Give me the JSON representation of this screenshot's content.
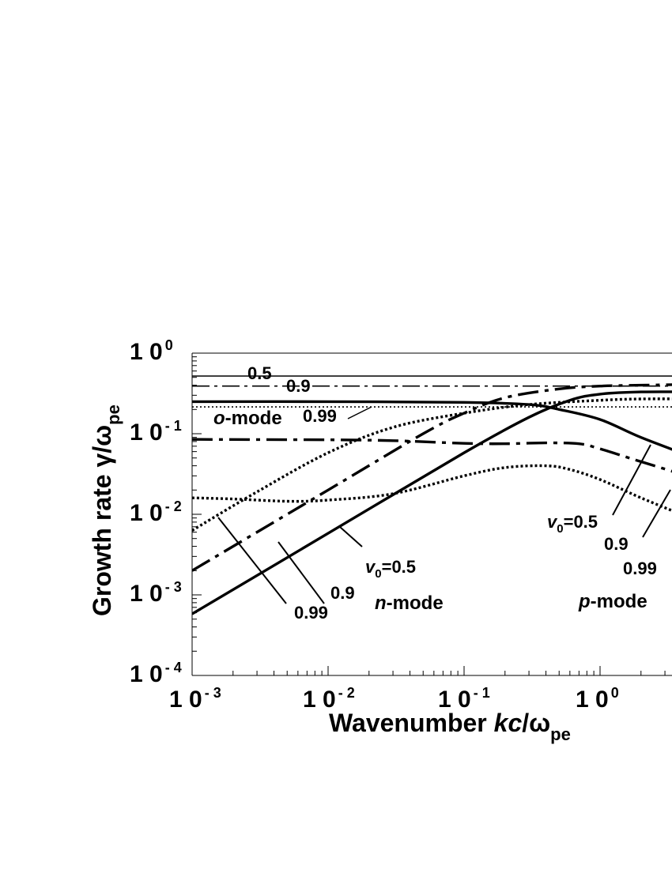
{
  "chart_data": {
    "type": "line",
    "x_scale": "log",
    "y_scale": "log",
    "xlim": [
      0.001,
      5
    ],
    "ylim": [
      0.0001,
      1
    ],
    "xlabel": {
      "text": "Wavenumber ",
      "italic": "kc",
      "rest": "/ω",
      "sub": "pe"
    },
    "ylabel": {
      "text": "Growth rate γ/ω",
      "sub": "pe"
    },
    "x_ticks": [
      {
        "value": 0.001,
        "base": "1 0",
        "exp": "- 3"
      },
      {
        "value": 0.01,
        "base": "1 0",
        "exp": "- 2"
      },
      {
        "value": 0.1,
        "base": "1 0",
        "exp": "- 1"
      },
      {
        "value": 1,
        "base": "1 0",
        "exp": "0"
      }
    ],
    "y_ticks": [
      {
        "value": 1,
        "base": "1 0",
        "exp": "0"
      },
      {
        "value": 0.1,
        "base": "1 0",
        "exp": "- 1"
      },
      {
        "value": 0.01,
        "base": "1 0",
        "exp": "- 2"
      },
      {
        "value": 0.001,
        "base": "1 0",
        "exp": "- 3"
      },
      {
        "value": 0.0001,
        "base": "1 0",
        "exp": "- 4"
      }
    ],
    "series": [
      {
        "mode": "o",
        "v0": 0.5,
        "style": "thin-solid",
        "x": [
          0.001,
          5
        ],
        "y": [
          0.52,
          0.52
        ]
      },
      {
        "mode": "o",
        "v0": 0.9,
        "style": "thin-dashdot",
        "x": [
          0.001,
          5
        ],
        "y": [
          0.39,
          0.39
        ]
      },
      {
        "mode": "o",
        "v0": 0.99,
        "style": "thin-dotted",
        "x": [
          0.001,
          5
        ],
        "y": [
          0.215,
          0.215
        ]
      },
      {
        "mode": "n",
        "v0": 0.5,
        "style": "thick-solid",
        "x": [
          0.001,
          0.01,
          0.1,
          0.3,
          0.6,
          1,
          2,
          5
        ],
        "y": [
          0.00058,
          0.0058,
          0.058,
          0.16,
          0.26,
          0.31,
          0.33,
          0.33
        ]
      },
      {
        "mode": "n",
        "v0": 0.9,
        "style": "thick-dashdot",
        "x": [
          0.001,
          0.01,
          0.05,
          0.1,
          0.2,
          0.5,
          1,
          2,
          5
        ],
        "y": [
          0.002,
          0.02,
          0.1,
          0.18,
          0.28,
          0.36,
          0.39,
          0.4,
          0.41
        ]
      },
      {
        "mode": "n",
        "v0": 0.99,
        "style": "thick-dotted",
        "x": [
          0.001,
          0.003,
          0.01,
          0.03,
          0.1,
          0.3,
          1,
          2,
          5
        ],
        "y": [
          0.0063,
          0.019,
          0.058,
          0.12,
          0.18,
          0.23,
          0.26,
          0.27,
          0.27
        ]
      },
      {
        "mode": "p",
        "v0": 0.5,
        "style": "thick-solid",
        "x": [
          0.001,
          0.01,
          0.1,
          0.3,
          0.5,
          1,
          2,
          5
        ],
        "y": [
          0.25,
          0.25,
          0.245,
          0.23,
          0.2,
          0.15,
          0.09,
          0.05
        ]
      },
      {
        "mode": "p",
        "v0": 0.9,
        "style": "thick-dashdot",
        "x": [
          0.001,
          0.01,
          0.03,
          0.1,
          0.2,
          0.4,
          0.7,
          1,
          2,
          5
        ],
        "y": [
          0.085,
          0.084,
          0.082,
          0.076,
          0.075,
          0.077,
          0.075,
          0.065,
          0.045,
          0.028
        ]
      },
      {
        "mode": "p",
        "v0": 0.99,
        "style": "thick-dotted",
        "x": [
          0.001,
          0.002,
          0.005,
          0.01,
          0.03,
          0.1,
          0.2,
          0.4,
          0.6,
          1,
          2,
          5
        ],
        "y": [
          0.016,
          0.0155,
          0.0145,
          0.015,
          0.018,
          0.03,
          0.038,
          0.04,
          0.036,
          0.027,
          0.016,
          0.0085
        ]
      }
    ],
    "annotations": {
      "o_mode": {
        "mode_letter": "o",
        "mode_suffix": "-mode",
        "v05": "0.5",
        "v09": "0.9",
        "v099": "0.99"
      },
      "n_mode": {
        "v_label": "v",
        "v_sub": "0",
        "v_value": "=0.5",
        "v09": "0.9",
        "v099": "0.99",
        "mode_letter": "n",
        "mode_suffix": "-mode"
      },
      "p_mode": {
        "v_label": "v",
        "v_sub": "0",
        "v_value": "=0.5",
        "v09": "0.9",
        "v099": "0.99",
        "mode_letter": "p",
        "mode_suffix": "-mode"
      }
    }
  }
}
